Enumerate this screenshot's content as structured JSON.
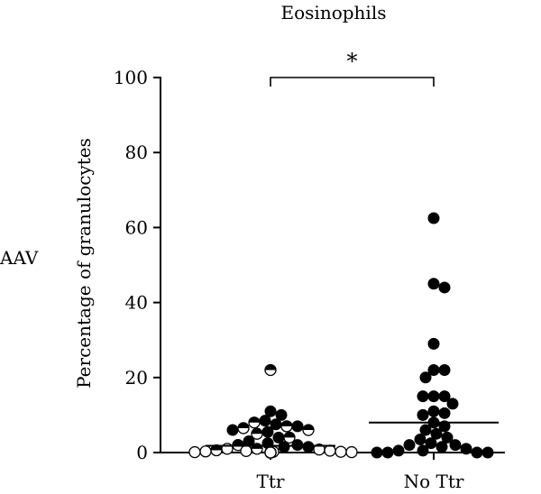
{
  "side_label": "AAV",
  "chart_data": {
    "type": "scatter",
    "title": "Eosinophils",
    "xlabel": "",
    "ylabel": "Percentage of granulocytes",
    "categories": [
      "Ttr",
      "No Ttr"
    ],
    "ylim": [
      0,
      100
    ],
    "yticks": [
      0,
      20,
      40,
      60,
      80,
      100
    ],
    "significance": {
      "between": [
        "Ttr",
        "No Ttr"
      ],
      "label": "*"
    },
    "series": [
      {
        "category": "Ttr",
        "median": 1.8,
        "points": [
          {
            "y": 22,
            "marker": "half"
          },
          {
            "y": 11,
            "marker": "filled"
          },
          {
            "y": 10,
            "marker": "filled"
          },
          {
            "y": 8.5,
            "marker": "filled"
          },
          {
            "y": 8,
            "marker": "half"
          },
          {
            "y": 7.5,
            "marker": "filled"
          },
          {
            "y": 7,
            "marker": "half"
          },
          {
            "y": 7,
            "marker": "filled"
          },
          {
            "y": 6.5,
            "marker": "half"
          },
          {
            "y": 6,
            "marker": "half"
          },
          {
            "y": 6,
            "marker": "filled"
          },
          {
            "y": 5.5,
            "marker": "filled"
          },
          {
            "y": 5,
            "marker": "half"
          },
          {
            "y": 4,
            "marker": "filled"
          },
          {
            "y": 4,
            "marker": "half"
          },
          {
            "y": 3,
            "marker": "filled"
          },
          {
            "y": 2.5,
            "marker": "filled"
          },
          {
            "y": 2,
            "marker": "filled"
          },
          {
            "y": 2,
            "marker": "half"
          },
          {
            "y": 1.5,
            "marker": "filled"
          },
          {
            "y": 1.5,
            "marker": "filled"
          },
          {
            "y": 1,
            "marker": "half"
          },
          {
            "y": 1,
            "marker": "open"
          },
          {
            "y": 0.8,
            "marker": "open"
          },
          {
            "y": 0.6,
            "marker": "half"
          },
          {
            "y": 0.5,
            "marker": "open"
          },
          {
            "y": 0.4,
            "marker": "open"
          },
          {
            "y": 0.3,
            "marker": "open"
          },
          {
            "y": 0.2,
            "marker": "open"
          },
          {
            "y": 0.2,
            "marker": "open"
          },
          {
            "y": 0.1,
            "marker": "open"
          },
          {
            "y": 0.1,
            "marker": "open"
          },
          {
            "y": 0,
            "marker": "open"
          },
          {
            "y": 0,
            "marker": "open"
          },
          {
            "y": 0,
            "marker": "open"
          },
          {
            "y": 0,
            "marker": "open"
          },
          {
            "y": 0,
            "marker": "open"
          },
          {
            "y": 0,
            "marker": "open"
          },
          {
            "y": 0,
            "marker": "open"
          }
        ]
      },
      {
        "category": "No Ttr",
        "median": 8,
        "points": [
          {
            "y": 62.5,
            "marker": "filled"
          },
          {
            "y": 45,
            "marker": "filled"
          },
          {
            "y": 44,
            "marker": "filled"
          },
          {
            "y": 29,
            "marker": "filled"
          },
          {
            "y": 22,
            "marker": "filled"
          },
          {
            "y": 22,
            "marker": "filled"
          },
          {
            "y": 20,
            "marker": "filled"
          },
          {
            "y": 15,
            "marker": "filled"
          },
          {
            "y": 15,
            "marker": "filled"
          },
          {
            "y": 15,
            "marker": "filled"
          },
          {
            "y": 13,
            "marker": "filled"
          },
          {
            "y": 11,
            "marker": "filled"
          },
          {
            "y": 10.5,
            "marker": "filled"
          },
          {
            "y": 10,
            "marker": "filled"
          },
          {
            "y": 8,
            "marker": "filled"
          },
          {
            "y": 7,
            "marker": "filled"
          },
          {
            "y": 6,
            "marker": "filled"
          },
          {
            "y": 5,
            "marker": "filled"
          },
          {
            "y": 4,
            "marker": "filled"
          },
          {
            "y": 3.5,
            "marker": "filled"
          },
          {
            "y": 2.5,
            "marker": "filled"
          },
          {
            "y": 2,
            "marker": "filled"
          },
          {
            "y": 2,
            "marker": "filled"
          },
          {
            "y": 1.5,
            "marker": "filled"
          },
          {
            "y": 1,
            "marker": "filled"
          },
          {
            "y": 0.5,
            "marker": "filled"
          },
          {
            "y": 0.5,
            "marker": "filled"
          },
          {
            "y": 0,
            "marker": "filled"
          },
          {
            "y": 0,
            "marker": "filled"
          },
          {
            "y": 0,
            "marker": "filled"
          },
          {
            "y": 0,
            "marker": "filled"
          }
        ]
      }
    ]
  }
}
